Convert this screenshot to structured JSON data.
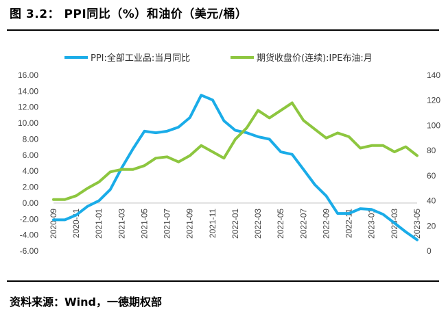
{
  "figure": {
    "title": "图 3.2： PPI同比（%）和油价（美元/桶）",
    "source": "资料来源：Wind，一德期权部"
  },
  "chart_data": {
    "type": "line",
    "x": [
      "2020-09",
      "2020-10",
      "2020-11",
      "2020-12",
      "2021-01",
      "2021-02",
      "2021-03",
      "2021-04",
      "2021-05",
      "2021-06",
      "2021-07",
      "2021-08",
      "2021-09",
      "2021-10",
      "2021-11",
      "2021-12",
      "2022-01",
      "2022-02",
      "2022-03",
      "2022-04",
      "2022-05",
      "2022-06",
      "2022-07",
      "2022-08",
      "2022-09",
      "2022-10",
      "2022-11",
      "2022-12",
      "2023-01",
      "2023-02",
      "2023-03",
      "2023-04",
      "2023-05"
    ],
    "x_tick_labels": [
      "2020-09",
      "2020-11",
      "2021-01",
      "2021-03",
      "2021-05",
      "2021-07",
      "2021-09",
      "2021-11",
      "2022-01",
      "2022-03",
      "2022-05",
      "2022-07",
      "2022-09",
      "2022-11",
      "2023-01",
      "2023-03",
      "2023-05"
    ],
    "y_left": {
      "ticks": [
        "-6.00",
        "-4.00",
        "-2.00",
        "0.00",
        "2.00",
        "4.00",
        "6.00",
        "8.00",
        "10.00",
        "12.00",
        "14.00",
        "16.00"
      ],
      "min": -6,
      "max": 16
    },
    "y_right": {
      "ticks": [
        "0",
        "20",
        "40",
        "60",
        "80",
        "100",
        "120",
        "140"
      ],
      "min": 0,
      "max": 140
    },
    "series": [
      {
        "name": "PPI:全部工业品:当月同比",
        "axis": "left",
        "color": "#1AACE8",
        "values": [
          -2.1,
          -2.1,
          -1.5,
          -0.4,
          0.3,
          1.7,
          4.4,
          6.8,
          9.0,
          8.8,
          9.0,
          9.5,
          10.7,
          13.5,
          12.9,
          10.3,
          9.1,
          8.8,
          8.3,
          8.0,
          6.4,
          6.1,
          4.2,
          2.3,
          0.9,
          -1.3,
          -1.3,
          -0.7,
          -0.8,
          -1.4,
          -2.5,
          -3.6,
          -4.6
        ]
      },
      {
        "name": "期货收盘价(连续):IPE布油:月",
        "axis": "right",
        "color": "#8DC63F",
        "values": [
          41,
          41,
          44,
          50,
          55,
          63,
          65,
          65,
          68,
          74,
          75,
          71,
          76,
          84,
          79,
          74,
          89,
          98,
          112,
          106,
          112,
          118,
          104,
          97,
          90,
          94,
          91,
          82,
          84,
          84,
          79,
          83,
          76
        ]
      }
    ],
    "legend_position": "top",
    "grid": false
  }
}
